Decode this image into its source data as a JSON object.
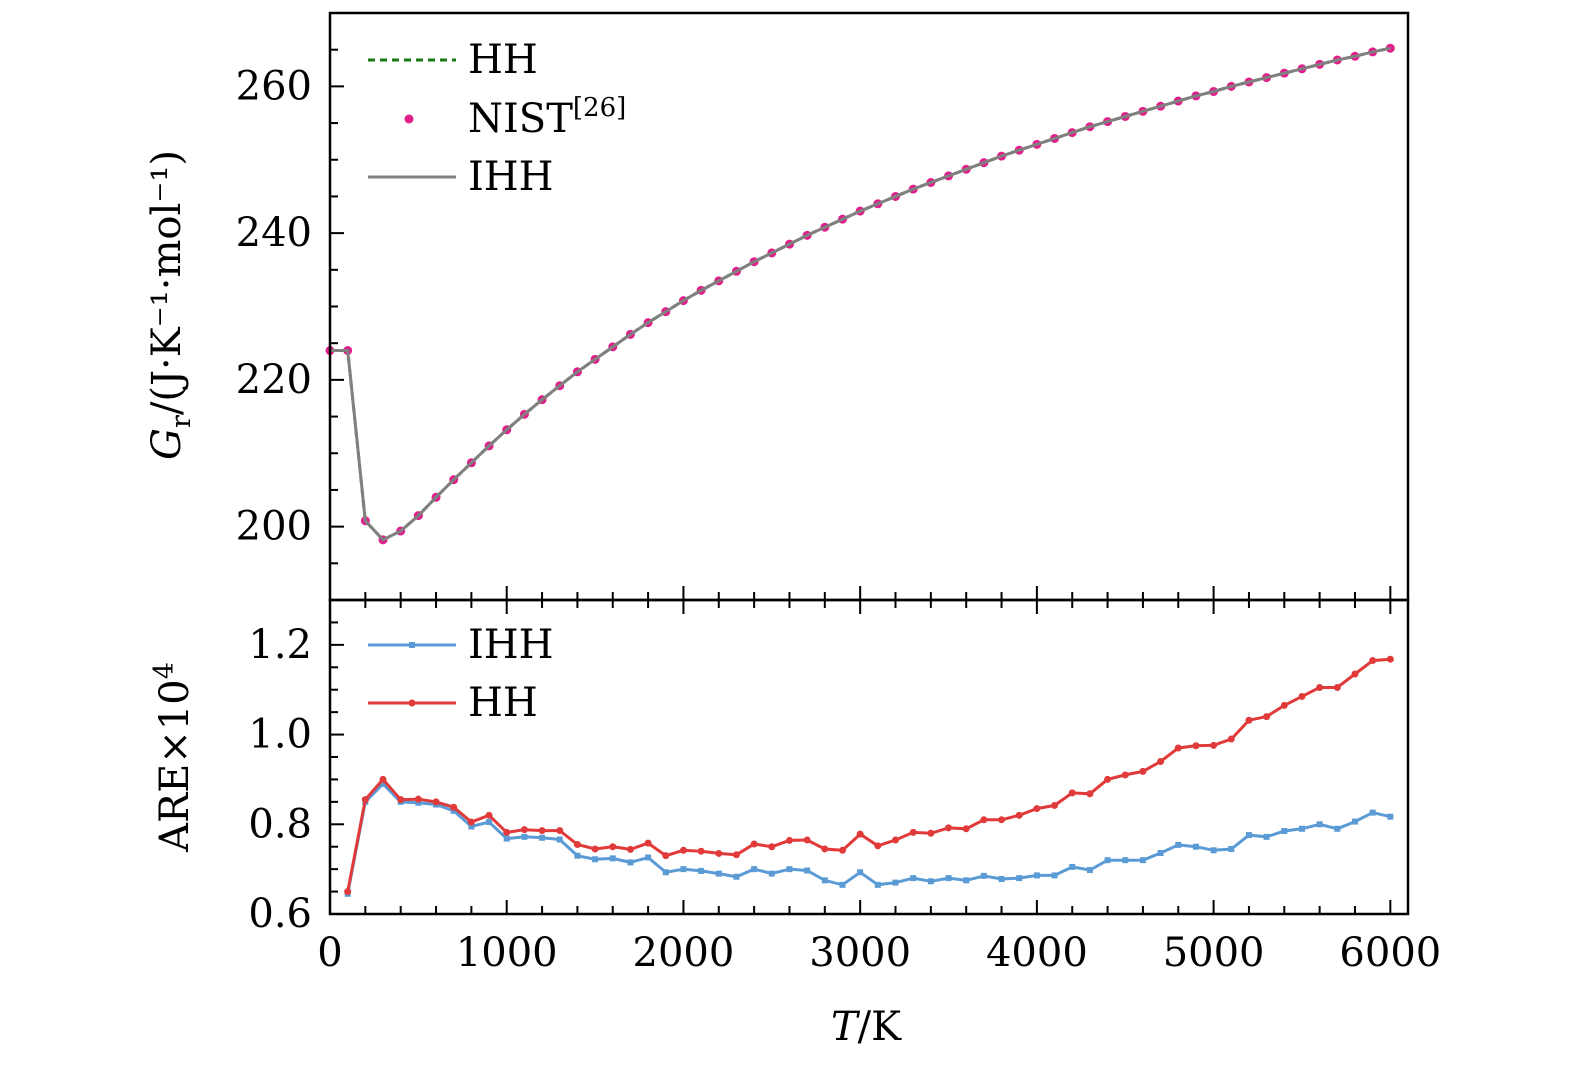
{
  "colors": {
    "hh_dashed": "#1a7a1a",
    "nist": "#e0208a",
    "ihh_top": "#808080",
    "ihh_bottom": "#5b9bd5",
    "hh_bottom": "#e03a3a",
    "axis": "#000000"
  },
  "chart_data": [
    {
      "type": "line",
      "panel": "top",
      "ylabel_main": "G",
      "ylabel_sub": "r",
      "ylabel_rest": "/(J·K⁻¹·mol⁻¹)",
      "xlim": [
        0,
        6100
      ],
      "ylim": [
        190,
        270
      ],
      "yticks": [
        200,
        220,
        240,
        260
      ],
      "ytick_labels": [
        "200",
        "220",
        "240",
        "260"
      ],
      "x": [
        0,
        100,
        200,
        300,
        400,
        500,
        600,
        700,
        800,
        900,
        1000,
        1100,
        1200,
        1300,
        1400,
        1500,
        1600,
        1700,
        1800,
        1900,
        2000,
        2100,
        2200,
        2300,
        2400,
        2500,
        2600,
        2700,
        2800,
        2900,
        3000,
        3100,
        3200,
        3300,
        3400,
        3500,
        3600,
        3700,
        3800,
        3900,
        4000,
        4100,
        4200,
        4300,
        4400,
        4500,
        4600,
        4700,
        4800,
        4900,
        5000,
        5100,
        5200,
        5300,
        5400,
        5500,
        5600,
        5700,
        5800,
        5900,
        6000
      ],
      "series": [
        {
          "name": "HH",
          "style": "dashed",
          "values": [
            224,
            224,
            200.8,
            198.2,
            199.4,
            201.5,
            204,
            206.4,
            208.7,
            211,
            213.2,
            215.3,
            217.3,
            219.2,
            221.1,
            222.8,
            224.5,
            226.2,
            227.8,
            229.3,
            230.8,
            232.2,
            233.5,
            234.8,
            236.1,
            237.3,
            238.5,
            239.7,
            240.8,
            241.9,
            243,
            244,
            245,
            246,
            246.9,
            247.8,
            248.7,
            249.6,
            250.5,
            251.3,
            252.1,
            252.9,
            253.7,
            254.5,
            255.2,
            255.9,
            256.6,
            257.3,
            258,
            258.7,
            259.3,
            260,
            260.6,
            261.2,
            261.8,
            262.4,
            263,
            263.6,
            264.1,
            264.7,
            265.2
          ]
        },
        {
          "name": "NIST[26]",
          "style": "markers",
          "values": [
            224,
            224,
            200.8,
            198.2,
            199.4,
            201.5,
            204,
            206.4,
            208.7,
            211,
            213.2,
            215.3,
            217.3,
            219.2,
            221.1,
            222.8,
            224.5,
            226.2,
            227.8,
            229.3,
            230.8,
            232.2,
            233.5,
            234.8,
            236.1,
            237.3,
            238.5,
            239.7,
            240.8,
            241.9,
            243,
            244,
            245,
            246,
            246.9,
            247.8,
            248.7,
            249.6,
            250.5,
            251.3,
            252.1,
            252.9,
            253.7,
            254.5,
            255.2,
            255.9,
            256.6,
            257.3,
            258,
            258.7,
            259.3,
            260,
            260.6,
            261.2,
            261.8,
            262.4,
            263,
            263.6,
            264.1,
            264.7,
            265.2
          ]
        },
        {
          "name": "IHH",
          "style": "solid",
          "values": [
            224,
            224,
            200.8,
            198.2,
            199.4,
            201.5,
            204,
            206.4,
            208.7,
            211,
            213.2,
            215.3,
            217.3,
            219.2,
            221.1,
            222.8,
            224.5,
            226.2,
            227.8,
            229.3,
            230.8,
            232.2,
            233.5,
            234.8,
            236.1,
            237.3,
            238.5,
            239.7,
            240.8,
            241.9,
            243,
            244,
            245,
            246,
            246.9,
            247.8,
            248.7,
            249.6,
            250.5,
            251.3,
            252.1,
            252.9,
            253.7,
            254.5,
            255.2,
            255.9,
            256.6,
            257.3,
            258,
            258.7,
            259.3,
            260,
            260.6,
            261.2,
            261.8,
            262.4,
            263,
            263.6,
            264.1,
            264.7,
            265.2
          ]
        }
      ],
      "legend": [
        {
          "label": "HH",
          "sup": "",
          "style": "dashed"
        },
        {
          "label": "NIST",
          "sup": "[26]",
          "style": "markers"
        },
        {
          "label": "IHH",
          "sup": "",
          "style": "solid"
        }
      ],
      "legend_position": "top-left"
    },
    {
      "type": "line",
      "panel": "bottom",
      "ylabel": "ARE×10",
      "ylabel_sup": "4",
      "xlabel_var": "T",
      "xlabel_unit": "/K",
      "xlim": [
        0,
        6100
      ],
      "ylim": [
        0.6,
        1.3
      ],
      "yticks": [
        0.6,
        0.8,
        1.0,
        1.2
      ],
      "ytick_labels": [
        "0.6",
        "0.8",
        "1.0",
        "1.2"
      ],
      "xticks": [
        0,
        1000,
        2000,
        3000,
        4000,
        5000,
        6000
      ],
      "xtick_labels": [
        "0",
        "1000",
        "2000",
        "3000",
        "4000",
        "5000",
        "6000"
      ],
      "x": [
        100,
        200,
        300,
        400,
        500,
        600,
        700,
        800,
        900,
        1000,
        1100,
        1200,
        1300,
        1400,
        1500,
        1600,
        1700,
        1800,
        1900,
        2000,
        2100,
        2200,
        2300,
        2400,
        2500,
        2600,
        2700,
        2800,
        2900,
        3000,
        3100,
        3200,
        3300,
        3400,
        3500,
        3600,
        3700,
        3800,
        3900,
        4000,
        4100,
        4200,
        4300,
        4400,
        4500,
        4600,
        4700,
        4800,
        4900,
        5000,
        5100,
        5200,
        5300,
        5400,
        5500,
        5600,
        5700,
        5800,
        5900,
        6000
      ],
      "series": [
        {
          "name": "IHH",
          "values": [
            0.645,
            0.85,
            0.89,
            0.85,
            0.848,
            0.844,
            0.83,
            0.795,
            0.805,
            0.768,
            0.772,
            0.77,
            0.766,
            0.73,
            0.722,
            0.724,
            0.715,
            0.726,
            0.693,
            0.7,
            0.696,
            0.69,
            0.683,
            0.7,
            0.69,
            0.7,
            0.697,
            0.675,
            0.665,
            0.693,
            0.665,
            0.67,
            0.68,
            0.673,
            0.68,
            0.675,
            0.685,
            0.678,
            0.68,
            0.686,
            0.686,
            0.705,
            0.698,
            0.72,
            0.72,
            0.72,
            0.736,
            0.754,
            0.75,
            0.742,
            0.745,
            0.776,
            0.772,
            0.785,
            0.79,
            0.8,
            0.79,
            0.806,
            0.826,
            0.817
          ]
        },
        {
          "name": "HH",
          "values": [
            0.65,
            0.855,
            0.9,
            0.855,
            0.856,
            0.85,
            0.838,
            0.805,
            0.82,
            0.782,
            0.788,
            0.786,
            0.786,
            0.755,
            0.745,
            0.75,
            0.744,
            0.758,
            0.73,
            0.742,
            0.74,
            0.735,
            0.732,
            0.756,
            0.75,
            0.764,
            0.765,
            0.745,
            0.742,
            0.778,
            0.752,
            0.765,
            0.782,
            0.78,
            0.792,
            0.79,
            0.81,
            0.81,
            0.82,
            0.835,
            0.842,
            0.87,
            0.868,
            0.9,
            0.91,
            0.918,
            0.94,
            0.97,
            0.975,
            0.976,
            0.99,
            1.032,
            1.04,
            1.065,
            1.085,
            1.105,
            1.105,
            1.135,
            1.165,
            1.168
          ]
        }
      ],
      "legend": [
        {
          "label": "IHH"
        },
        {
          "label": "HH"
        }
      ],
      "legend_position": "top-left"
    }
  ]
}
